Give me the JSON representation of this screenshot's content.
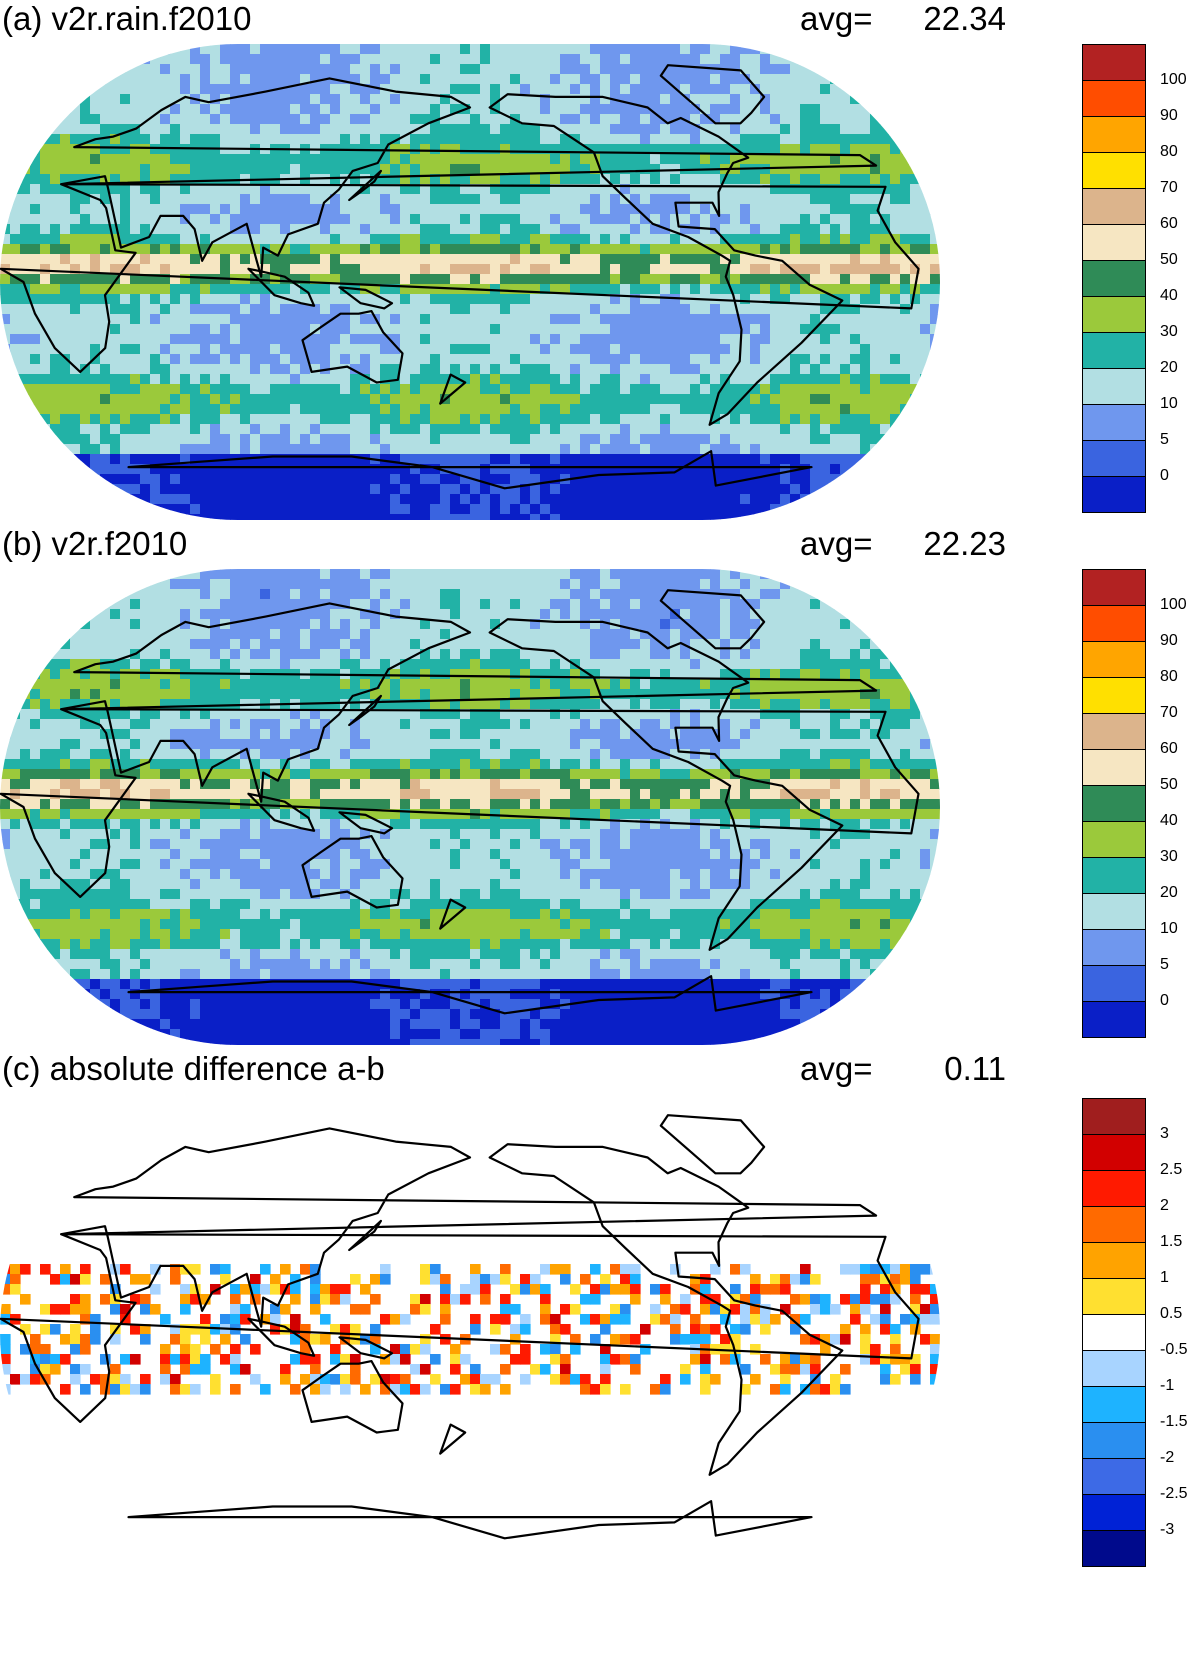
{
  "panels": [
    {
      "title": "(a) v2r.rain.f2010",
      "avg_label": "avg=",
      "avg_value": "22.34",
      "colorbar": {
        "colors": [
          "#0a1fc7",
          "#3a64e0",
          "#6f97ee",
          "#b2dfe3",
          "#22b2a6",
          "#9bc93b",
          "#2f8b57",
          "#f6e6c2",
          "#dcb48c",
          "#ffe000",
          "#ffa500",
          "#ff4d00",
          "#b22222"
        ],
        "labels": [
          "0",
          "5",
          "10",
          "20",
          "30",
          "40",
          "50",
          "60",
          "70",
          "80",
          "90",
          "100"
        ]
      }
    },
    {
      "title": "(b) v2r.f2010",
      "avg_label": "avg=",
      "avg_value": "22.23",
      "colorbar": {
        "colors": [
          "#0a1fc7",
          "#3a64e0",
          "#6f97ee",
          "#b2dfe3",
          "#22b2a6",
          "#9bc93b",
          "#2f8b57",
          "#f6e6c2",
          "#dcb48c",
          "#ffe000",
          "#ffa500",
          "#ff4d00",
          "#b22222"
        ],
        "labels": [
          "0",
          "5",
          "10",
          "20",
          "30",
          "40",
          "50",
          "60",
          "70",
          "80",
          "90",
          "100"
        ]
      }
    },
    {
      "title": "(c) absolute difference a-b",
      "avg_label": "avg=",
      "avg_value": "0.11",
      "colorbar": {
        "colors": [
          "#000a8c",
          "#0022d6",
          "#3d6ae6",
          "#2a8ff0",
          "#1eb3ff",
          "#a8d4ff",
          "#ffffff",
          "#ffe030",
          "#ffa300",
          "#ff6a00",
          "#ff1a00",
          "#d20000",
          "#a01e1e"
        ],
        "labels": [
          "-3",
          "-2.5",
          "-2",
          "-1.5",
          "-1",
          "-0.5",
          "0.5",
          "1",
          "1.5",
          "2",
          "2.5",
          "3"
        ]
      }
    }
  ]
}
